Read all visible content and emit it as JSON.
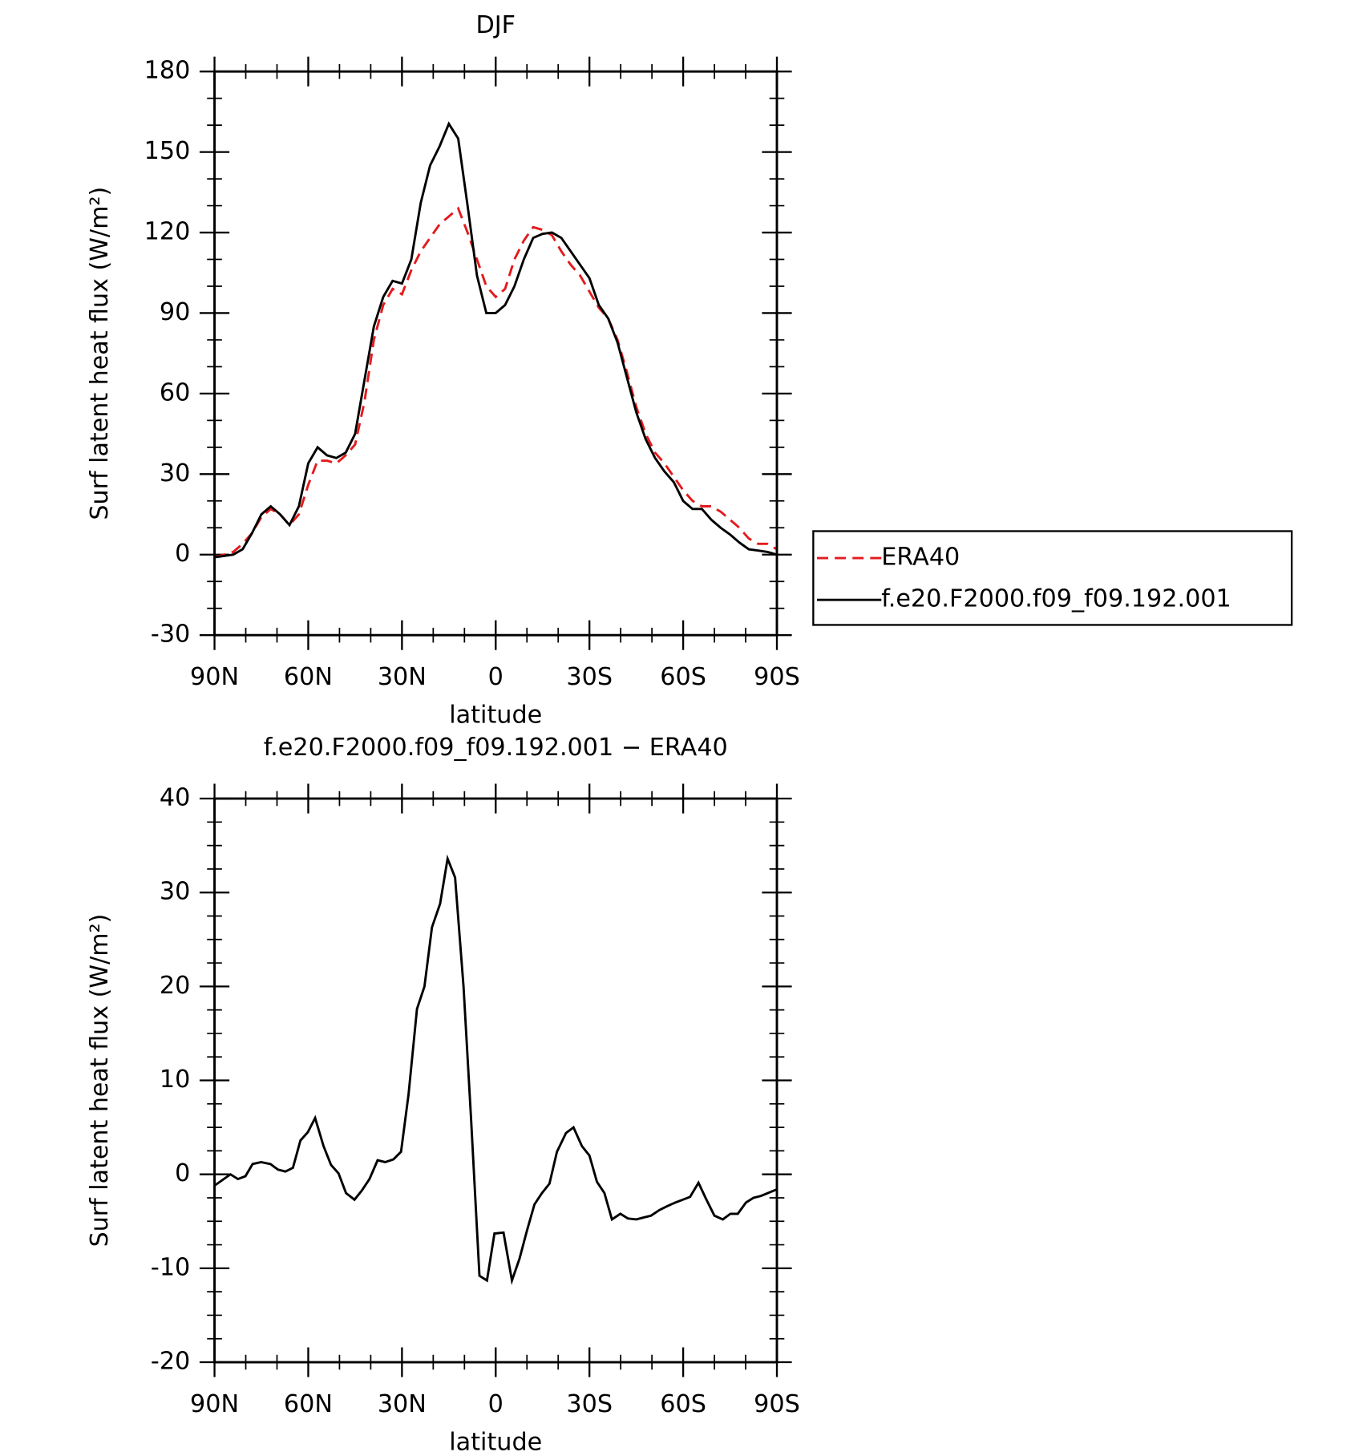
{
  "chart_data": [
    {
      "type": "line",
      "title": "DJF",
      "xlabel": "latitude",
      "ylabel": "Surf latent heat flux (W/m²)",
      "x": [
        90,
        87,
        84,
        81,
        78,
        75,
        72,
        69,
        66,
        63,
        60,
        57,
        54,
        51,
        48,
        45,
        42,
        39,
        36,
        33,
        30,
        27,
        24,
        21,
        18,
        15,
        12,
        9,
        6,
        3,
        0,
        -3,
        -6,
        -9,
        -12,
        -15,
        -18,
        -21,
        -24,
        -27,
        -30,
        -33,
        -36,
        -39,
        -42,
        -45,
        -48,
        -51,
        -54,
        -57,
        -60,
        -63,
        -66,
        -69,
        -72,
        -75,
        -78,
        -81,
        -84,
        -87,
        -90
      ],
      "series": [
        {
          "name": "ERA40",
          "color": "#e41a1c",
          "linestyle": "dashed",
          "values": [
            -1,
            0,
            1,
            4,
            8,
            14,
            17,
            15,
            11,
            15,
            26,
            35,
            35,
            34,
            37,
            41,
            57,
            80,
            93,
            99,
            97,
            106,
            113,
            118,
            123,
            126,
            129,
            120,
            110,
            100,
            96,
            99,
            110,
            117,
            122,
            121,
            119,
            113,
            108,
            104,
            98,
            92,
            88,
            80,
            68,
            55,
            45,
            38,
            34,
            29,
            24,
            20,
            18,
            18,
            16,
            13,
            10,
            6,
            4,
            4,
            2
          ]
        },
        {
          "name": "f.e20.F2000.f09_f09.192.001",
          "color": "#000000",
          "linestyle": "solid",
          "values": [
            -1,
            -0.5,
            0,
            2,
            8,
            15,
            18,
            15,
            11,
            18,
            34,
            40,
            37,
            36,
            38,
            45,
            65,
            85,
            96,
            102,
            101,
            110,
            131,
            145,
            152,
            160.5,
            155,
            130,
            104,
            90,
            90,
            93,
            100,
            110,
            118,
            119.5,
            120,
            118,
            113,
            108,
            103,
            93,
            88,
            79,
            66,
            53,
            43,
            36,
            31,
            27,
            20,
            17,
            17,
            13,
            10,
            7.5,
            4.5,
            2,
            1.5,
            1,
            0
          ]
        }
      ],
      "xlim": [
        90,
        -90
      ],
      "xticks": [
        {
          "value": 90,
          "label": "90N"
        },
        {
          "value": 60,
          "label": "60N"
        },
        {
          "value": 30,
          "label": "30N"
        },
        0,
        {
          "value": -30,
          "label": "30S"
        },
        {
          "value": -60,
          "label": "60S"
        },
        {
          "value": -90,
          "label": "90S"
        }
      ],
      "ylim": [
        -30,
        180
      ],
      "yticks": [
        -30,
        0,
        30,
        60,
        90,
        120,
        150,
        180
      ],
      "legend": "outside-right"
    },
    {
      "type": "line",
      "title": "f.e20.F2000.f09_f09.192.001 − ERA40",
      "xlabel": "latitude",
      "ylabel": "Surf latent heat flux (W/m²)",
      "x": [
        90,
        84.9,
        82.5,
        80.1,
        77.8,
        75.1,
        72.1,
        69.7,
        67.3,
        64.9,
        62.5,
        60.1,
        57.8,
        55.1,
        52.7,
        50.3,
        47.9,
        45.2,
        42.8,
        40.4,
        37.8,
        35.4,
        32.7,
        30.3,
        27.9,
        25.2,
        22.8,
        20.4,
        17.8,
        15.4,
        13,
        10.3,
        7.9,
        5.2,
        2.8,
        0.4,
        -2.5,
        -5.2,
        -7.6,
        -10,
        -12.4,
        -14.8,
        -17.2,
        -19.6,
        -22.5,
        -24.9,
        -27.6,
        -30,
        -32.4,
        -34.8,
        -37.2,
        -39.9,
        -42.3,
        -45,
        -47.3,
        -49.7,
        -52.4,
        -54.8,
        -57.5,
        -59.9,
        -62.2,
        -64.9,
        -67.3,
        -70,
        -72.7,
        -75.1,
        -77.5,
        -80.1,
        -82.5,
        -84.9,
        -90
      ],
      "series": [
        {
          "color": "#000000",
          "linestyle": "solid",
          "values": [
            -1.2,
            0,
            -0.5,
            -0.2,
            1.1,
            1.3,
            1.1,
            0.5,
            0.3,
            0.7,
            3.6,
            4.5,
            6,
            3,
            1,
            0.1,
            -2,
            -2.7,
            -1.7,
            -0.5,
            1.5,
            1.3,
            1.6,
            2.4,
            8.5,
            17.6,
            20,
            26.3,
            28.8,
            33.6,
            31.6,
            20,
            6,
            -10.8,
            -11.3,
            -6.3,
            -6.2,
            -11.3,
            -9,
            -6,
            -3.2,
            -2,
            -1,
            2.4,
            4.4,
            5,
            3,
            2,
            -0.8,
            -2,
            -4.8,
            -4.2,
            -4.7,
            -4.8,
            -4.6,
            -4.4,
            -3.8,
            -3.4,
            -3,
            -2.7,
            -2.4,
            -0.9,
            -2.6,
            -4.4,
            -4.8,
            -4.2,
            -4.2,
            -3,
            -2.5,
            -2.3,
            -1.6
          ]
        }
      ],
      "xlim": [
        90,
        -90
      ],
      "xticks": [
        {
          "value": 90,
          "label": "90N"
        },
        {
          "value": 60,
          "label": "60N"
        },
        {
          "value": 30,
          "label": "30N"
        },
        0,
        {
          "value": -30,
          "label": "30S"
        },
        {
          "value": -60,
          "label": "60S"
        },
        {
          "value": -90,
          "label": "90S"
        }
      ],
      "ylim": [
        -20,
        40
      ],
      "yticks": [
        -20,
        -10,
        0,
        10,
        20,
        30,
        40
      ]
    }
  ]
}
